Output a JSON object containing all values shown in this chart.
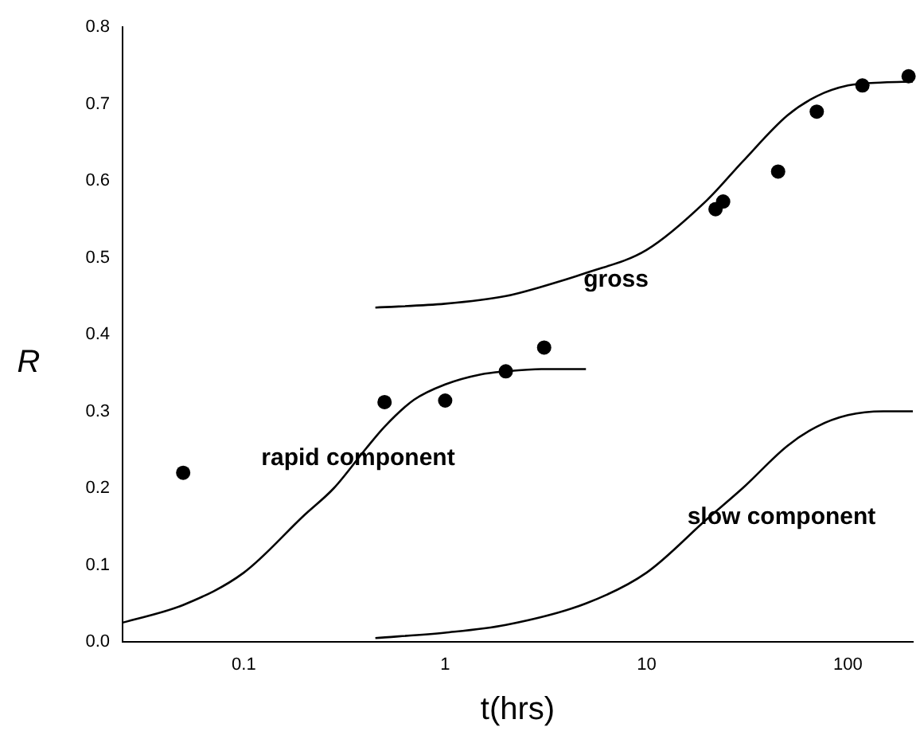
{
  "chart_data": {
    "type": "scatter",
    "xlabel": "t(hrs)",
    "ylabel": "R",
    "log": "x",
    "xlim": [
      0.025,
      210
    ],
    "xticks": [
      0.1,
      1,
      10,
      100
    ],
    "ylim": [
      0,
      0.8
    ],
    "yticks": [
      {
        "value": 0,
        "label": "0.0"
      },
      {
        "value": 0.1,
        "label": "0.1"
      },
      {
        "value": 0.2,
        "label": "0.2"
      },
      {
        "value": 0.3,
        "label": "0.3"
      },
      {
        "value": 0.4,
        "label": "0.4"
      },
      {
        "value": 0.5,
        "label": "0.5"
      },
      {
        "value": 0.6,
        "label": "0.6"
      },
      {
        "value": 0.7,
        "label": "0.7"
      },
      {
        "value": 0.8,
        "label": "0.8"
      }
    ],
    "grid": false,
    "legend": false,
    "marker": "circle",
    "series": [
      {
        "color": "#000000",
        "x": [
          0.05,
          0.5,
          1,
          2,
          3.1,
          22,
          24,
          45,
          70,
          118,
          200
        ],
        "values": [
          0.22,
          0.312,
          0.314,
          0.352,
          0.383,
          0.563,
          0.573,
          0.612,
          0.69,
          0.724,
          0.736
        ]
      },
      {
        "type": "line",
        "color": "#000000",
        "marker": "none",
        "line_style": "solid",
        "x": [
          0.025,
          0.05,
          0.1,
          0.2,
          0.28,
          0.4,
          0.5,
          0.7,
          1,
          1.5,
          2,
          3,
          5
        ],
        "values": [
          0.025,
          0.048,
          0.09,
          0.165,
          0.2,
          0.25,
          0.28,
          0.315,
          0.335,
          0.348,
          0.352,
          0.355,
          0.355
        ]
      },
      {
        "type": "line",
        "color": "#000000",
        "marker": "none",
        "line_style": "solid",
        "x": [
          0.45,
          1,
          2,
          3,
          5,
          10,
          20,
          30,
          50,
          70,
          100,
          150,
          210
        ],
        "values": [
          0.435,
          0.44,
          0.45,
          0.462,
          0.48,
          0.51,
          0.575,
          0.625,
          0.685,
          0.71,
          0.724,
          0.728,
          0.729
        ]
      },
      {
        "type": "line",
        "color": "#000000",
        "marker": "none",
        "line_style": "solid",
        "x": [
          0.45,
          1,
          2,
          5,
          10,
          20,
          30,
          50,
          70,
          100,
          150,
          210
        ],
        "values": [
          0.005,
          0.012,
          0.022,
          0.05,
          0.09,
          0.16,
          0.2,
          0.255,
          0.28,
          0.295,
          0.3,
          0.3
        ]
      }
    ],
    "annotations": [
      "gross",
      "rapid component",
      "slow component"
    ]
  }
}
